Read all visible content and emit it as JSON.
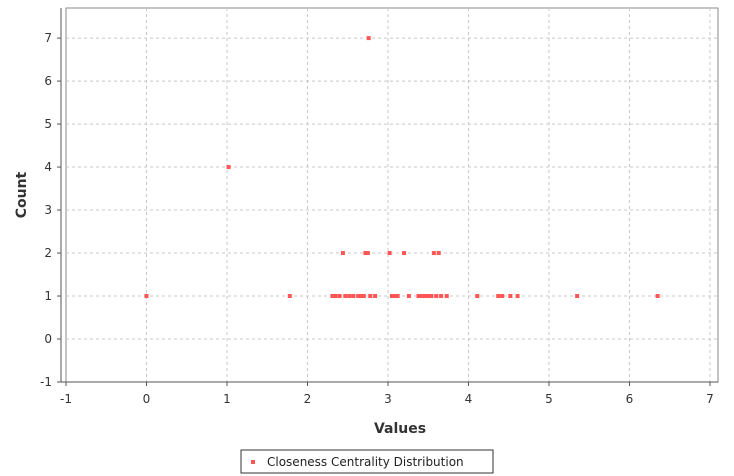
{
  "chart_data": {
    "type": "scatter",
    "title": "",
    "xlabel": "Values",
    "ylabel": "Count",
    "xlim": [
      -1,
      7.1
    ],
    "ylim": [
      -1,
      7.7
    ],
    "xticks": [
      -1,
      0,
      1,
      2,
      3,
      4,
      5,
      6,
      7
    ],
    "yticks": [
      -1,
      0,
      1,
      2,
      3,
      4,
      5,
      6,
      7
    ],
    "grid": true,
    "legend_position": "bottom-center",
    "series": [
      {
        "name": "Closeness Centrality Distribution",
        "color": "#ff5555",
        "points": [
          [
            0.0,
            1
          ],
          [
            1.02,
            4
          ],
          [
            1.78,
            1
          ],
          [
            2.31,
            1
          ],
          [
            2.35,
            1
          ],
          [
            2.4,
            1
          ],
          [
            2.44,
            2
          ],
          [
            2.47,
            1
          ],
          [
            2.52,
            1
          ],
          [
            2.57,
            1
          ],
          [
            2.63,
            1
          ],
          [
            2.67,
            1
          ],
          [
            2.7,
            1
          ],
          [
            2.72,
            2
          ],
          [
            2.75,
            2
          ],
          [
            2.76,
            7
          ],
          [
            2.78,
            1
          ],
          [
            2.84,
            1
          ],
          [
            3.02,
            2
          ],
          [
            3.05,
            1
          ],
          [
            3.09,
            1
          ],
          [
            3.12,
            1
          ],
          [
            3.2,
            2
          ],
          [
            3.26,
            1
          ],
          [
            3.38,
            1
          ],
          [
            3.42,
            1
          ],
          [
            3.46,
            1
          ],
          [
            3.5,
            1
          ],
          [
            3.54,
            1
          ],
          [
            3.57,
            2
          ],
          [
            3.6,
            1
          ],
          [
            3.63,
            2
          ],
          [
            3.66,
            1
          ],
          [
            3.73,
            1
          ],
          [
            4.11,
            1
          ],
          [
            4.37,
            1
          ],
          [
            4.42,
            1
          ],
          [
            4.52,
            1
          ],
          [
            4.61,
            1
          ],
          [
            5.35,
            1
          ],
          [
            6.35,
            1
          ]
        ]
      }
    ]
  }
}
